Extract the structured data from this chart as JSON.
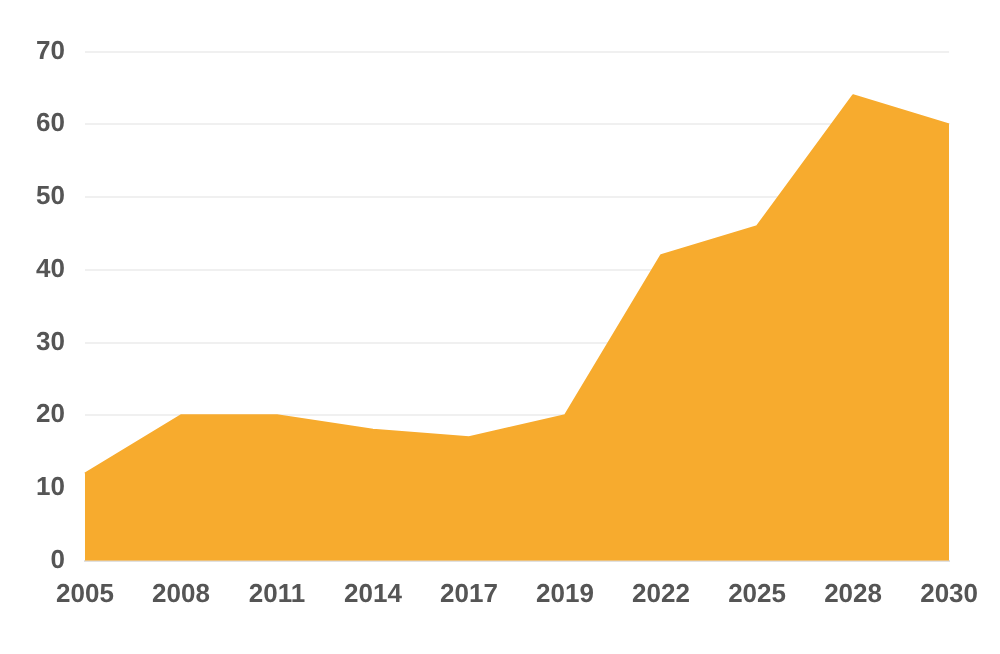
{
  "chart_data": {
    "type": "area",
    "categories": [
      "2005",
      "2008",
      "2011",
      "2014",
      "2017",
      "2019",
      "2022",
      "2025",
      "2028",
      "2030"
    ],
    "series": [
      {
        "color": "#f7ab2e",
        "values": [
          12,
          20,
          20,
          18,
          17,
          20,
          42,
          46,
          64,
          60
        ]
      }
    ],
    "ylim": [
      0,
      70
    ],
    "yticks": [
      0,
      10,
      20,
      30,
      40,
      50,
      60,
      70
    ],
    "grid": "y",
    "legend": false
  }
}
